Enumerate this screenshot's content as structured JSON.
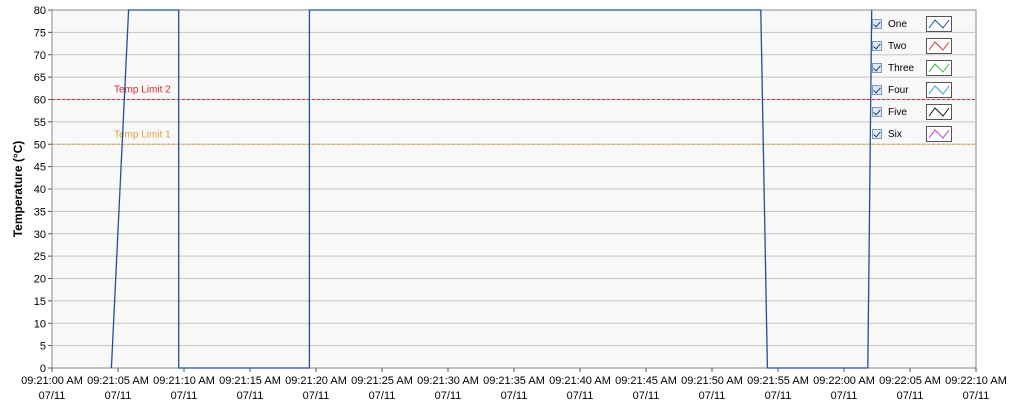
{
  "chart_data": {
    "type": "line",
    "ylabel": "Temperature (°C)",
    "ylim": [
      0,
      80
    ],
    "yticks": [
      0,
      5,
      10,
      15,
      20,
      25,
      30,
      35,
      40,
      45,
      50,
      55,
      60,
      65,
      70,
      75,
      80
    ],
    "xlim_seconds": [
      0,
      70
    ],
    "xticks": [
      {
        "time": "09:21:00 AM",
        "date": "07/11"
      },
      {
        "time": "09:21:05 AM",
        "date": "07/11"
      },
      {
        "time": "09:21:10 AM",
        "date": "07/11"
      },
      {
        "time": "09:21:15 AM",
        "date": "07/11"
      },
      {
        "time": "09:21:20 AM",
        "date": "07/11"
      },
      {
        "time": "09:21:25 AM",
        "date": "07/11"
      },
      {
        "time": "09:21:30 AM",
        "date": "07/11"
      },
      {
        "time": "09:21:35 AM",
        "date": "07/11"
      },
      {
        "time": "09:21:40 AM",
        "date": "07/11"
      },
      {
        "time": "09:21:45 AM",
        "date": "07/11"
      },
      {
        "time": "09:21:50 AM",
        "date": "07/11"
      },
      {
        "time": "09:21:55 AM",
        "date": "07/11"
      },
      {
        "time": "09:22:00 AM",
        "date": "07/11"
      },
      {
        "time": "09:22:05 AM",
        "date": "07/11"
      },
      {
        "time": "09:22:10 AM",
        "date": "07/11"
      }
    ],
    "limits": [
      {
        "name": "Temp Limit 2",
        "value": 60,
        "color": "#d42b2b"
      },
      {
        "name": "Temp Limit 1",
        "value": 50,
        "color": "#e0a23a"
      }
    ],
    "grid": true,
    "legend_position": "top-right",
    "series": [
      {
        "name": "One",
        "color": "#1f4f9c",
        "points": [
          [
            4.5,
            0
          ],
          [
            5.8,
            80
          ],
          [
            9.6,
            80
          ],
          [
            9.6,
            0
          ],
          [
            19.5,
            0
          ],
          [
            19.5,
            80
          ],
          [
            53.7,
            80
          ],
          [
            54.2,
            0
          ],
          [
            61.8,
            0
          ],
          [
            62.1,
            80
          ]
        ]
      },
      {
        "name": "Two",
        "color": "#d43a3a",
        "points": []
      },
      {
        "name": "Three",
        "color": "#2fbf2f",
        "points": []
      },
      {
        "name": "Four",
        "color": "#3a9be0",
        "points": []
      },
      {
        "name": "Five",
        "color": "#111111",
        "points": []
      },
      {
        "name": "Six",
        "color": "#c23ad4",
        "points": []
      }
    ]
  }
}
